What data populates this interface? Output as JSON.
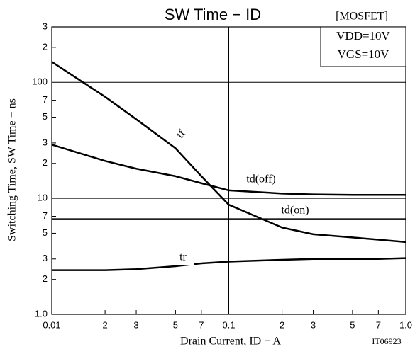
{
  "chart_data": {
    "type": "line",
    "title": "SW Time − ID",
    "note": "[MOSFET]",
    "conditions": [
      "VDD=10V",
      "VGS=10V"
    ],
    "x_label": "Drain Current, ID − A",
    "y_label": "Switching Time, SW Time − ns",
    "figure_id": "IT06923",
    "log_x": true,
    "log_y": true,
    "grid": true,
    "x": [
      0.01,
      0.02,
      0.03,
      0.05,
      0.07,
      0.1,
      0.2,
      0.3,
      0.5,
      0.7,
      1.0
    ],
    "series": [
      {
        "name": "tf",
        "color": "#000000",
        "values": [
          150,
          75,
          48,
          27,
          15.5,
          8.8,
          5.6,
          4.9,
          4.6,
          4.4,
          4.2
        ]
      },
      {
        "name": "td(off)",
        "color": "#000000",
        "values": [
          29,
          21,
          18,
          15.5,
          13.5,
          11.7,
          11,
          10.8,
          10.7,
          10.7,
          10.7
        ]
      },
      {
        "name": "td(on)",
        "color": "#000000",
        "values": [
          6.6,
          6.6,
          6.6,
          6.6,
          6.6,
          6.6,
          6.6,
          6.6,
          6.6,
          6.6,
          6.6
        ]
      },
      {
        "name": "tr",
        "color": "#000000",
        "values": [
          2.4,
          2.4,
          2.45,
          2.6,
          2.75,
          2.85,
          2.95,
          3.0,
          3.0,
          3.0,
          3.05
        ]
      }
    ],
    "xlim": [
      0.01,
      1.0
    ],
    "ylim": [
      1,
      300
    ],
    "xticks": [
      0.01,
      {
        "value": 0.02,
        "label": "2"
      },
      {
        "value": 0.03,
        "label": "3"
      },
      {
        "value": 0.05,
        "label": "5"
      },
      {
        "value": 0.07,
        "label": "7"
      },
      0.1,
      {
        "value": 0.2,
        "label": "2"
      },
      {
        "value": 0.3,
        "label": "3"
      },
      {
        "value": 0.5,
        "label": "5"
      },
      {
        "value": 0.7,
        "label": "7"
      },
      {
        "value": 1.0,
        "label": "1.0"
      }
    ],
    "yticks": [
      {
        "value": 1,
        "label": "1.0"
      },
      2,
      3,
      5,
      7,
      10,
      {
        "value": 20,
        "label": "2"
      },
      {
        "value": 30,
        "label": "3"
      },
      {
        "value": 50,
        "label": "5"
      },
      {
        "value": 70,
        "label": "7"
      },
      100,
      {
        "value": 200,
        "label": "2"
      },
      {
        "value": 300,
        "label": "3"
      }
    ]
  }
}
